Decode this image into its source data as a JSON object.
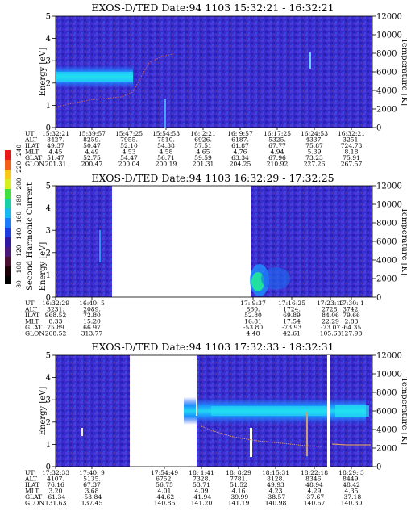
{
  "colorbar": {
    "label": "Second Harmonic Current",
    "ticks": [
      "80",
      "100",
      "120",
      "140",
      "160",
      "180",
      "200",
      "220",
      "240"
    ]
  },
  "chart_data": [
    {
      "type": "heatmap",
      "title": "EXOS-D/TED   Date:94 1103   15:32:21 - 16:32:21",
      "ylabel": "Energy [eV]",
      "y2label": "Temperature [K]",
      "ylim": [
        0,
        5
      ],
      "y2lim": [
        0,
        12000
      ],
      "yticks": [
        "0",
        "1",
        "2",
        "3",
        "4",
        "5"
      ],
      "y2ticks": [
        "0",
        "2000",
        "4000",
        "6000",
        "8000",
        "10000",
        "12000"
      ],
      "orbit_labels": [
        "UT",
        "ALT",
        "ILAT",
        "MLT",
        "GLAT",
        "GLON"
      ],
      "orbit_columns": [
        [
          "15:32:21",
          "8427.",
          "49.37",
          "4.45",
          "51.47",
          "201.31"
        ],
        [
          "15:39:57",
          "8259.",
          "50.47",
          "4.49",
          "52.75",
          "200.47"
        ],
        [
          "15:47:25",
          "7955.",
          "52.10",
          "4.53",
          "54.47",
          "200.04"
        ],
        [
          "15:54:53",
          "7510.",
          "54.38",
          "4.58",
          "56.71",
          "200.19"
        ],
        [
          "16: 2:21",
          "6926.",
          "57.51",
          "4.65",
          "59.59",
          "201.31"
        ],
        [
          "16: 9:57",
          "6187.",
          "61.87",
          "4.76",
          "63.34",
          "204.25"
        ],
        [
          "16:17:25",
          "5325.",
          "67.77",
          "4.94",
          "67.96",
          "210.92"
        ],
        [
          "16:24:53",
          "4337.",
          "75.87",
          "5.39",
          "73.23",
          "227.26"
        ],
        [
          "16:32:21",
          "3251.",
          "724.73",
          "8.18",
          "75.91",
          "267.57"
        ]
      ],
      "band": {
        "energy_center": 2.5,
        "time_start": 15.54,
        "time_end": 15.79
      }
    },
    {
      "type": "heatmap",
      "title": "EXOS-D/TED   Date:94 1103   16:32:29 - 17:32:25",
      "ylabel": "Energy [eV]",
      "y2label": "Temperature [K]",
      "ylim": [
        0,
        5
      ],
      "y2lim": [
        0,
        12000
      ],
      "yticks": [
        "0",
        "1",
        "2",
        "3",
        "4",
        "5"
      ],
      "y2ticks": [
        "0",
        "2000",
        "4000",
        "6000",
        "8000",
        "10000",
        "12000"
      ],
      "orbit_labels": [
        "UT",
        "ALT",
        "ILAT",
        "MLT",
        "GLAT",
        "GLON"
      ],
      "orbit_columns": [
        [
          "16:32:29",
          "3231.",
          "968.52",
          "8.33",
          "75.89",
          "268.52"
        ],
        [
          "16:40: 5",
          "2089.",
          "72.80",
          "15.20",
          "66.97",
          "313.77"
        ],
        [
          "17: 9:37",
          "860.",
          "52.80",
          "16.81",
          "-53.80",
          "4.48"
        ],
        [
          "17:16:25",
          "1724.",
          "69.89",
          "17.54",
          "-73.93",
          "42.61"
        ],
        [
          "17:23:13",
          "2728.",
          "84.06",
          "22.29",
          "-73.07",
          "105.63"
        ],
        [
          "17:30: 1",
          "3742.",
          "79.66",
          "2.83",
          "-64.35",
          "127.98"
        ]
      ]
    },
    {
      "type": "heatmap",
      "title": "EXOS-D/TED   Date:94 1103   17:32:33 - 18:32:31",
      "ylabel": "Energy [eV]",
      "y2label": "Temperature [K]",
      "ylim": [
        0,
        5
      ],
      "y2lim": [
        0,
        12000
      ],
      "yticks": [
        "0",
        "1",
        "2",
        "3",
        "4",
        "5"
      ],
      "y2ticks": [
        "0",
        "2000",
        "4000",
        "6000",
        "8000",
        "10000",
        "12000"
      ],
      "orbit_labels": [
        "UT",
        "ALT",
        "ILAT",
        "MLT",
        "GLAT",
        "GLON"
      ],
      "orbit_columns": [
        [
          "17:32:33",
          "4107.",
          "76.16",
          "3.20",
          "-61.34",
          "131.63"
        ],
        [
          "17:40: 9",
          "5135.",
          "67.37",
          "3.68",
          "-53.84",
          "137.45"
        ],
        [
          "17:54:49",
          "6752.",
          "56.75",
          "4.01",
          "-44.62",
          "140.86"
        ],
        [
          "18: 1:41",
          "7328.",
          "53.71",
          "4.09",
          "-41.94",
          "141.20"
        ],
        [
          "18: 8:29",
          "7781.",
          "51.52",
          "4.16",
          "-39.99",
          "141.19"
        ],
        [
          "18:15:31",
          "8128.",
          "49.93",
          "4.23",
          "-38.57",
          "140.98"
        ],
        [
          "18:22:18",
          "8346.",
          "48.94",
          "4.29",
          "-37.67",
          "140.67"
        ],
        [
          "18:29: 3",
          "8449.",
          "48.42",
          "4.35",
          "-37.18",
          "140.30"
        ]
      ],
      "band": {
        "energy_center": 2.6,
        "time_start": 17.87,
        "time_end": 18.54
      }
    }
  ]
}
